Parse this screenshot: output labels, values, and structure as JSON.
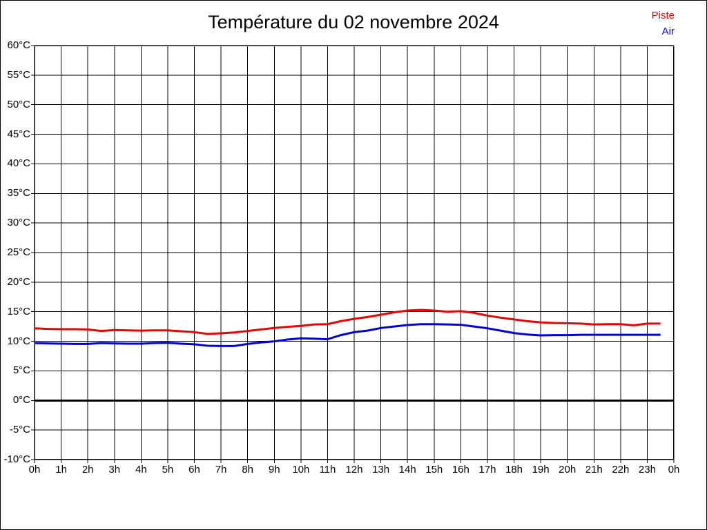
{
  "title": "Température du 02 novembre 2024",
  "legend": [
    {
      "label": "Piste",
      "color": "#ee0000"
    },
    {
      "label": "Air",
      "color": "#0000dd"
    }
  ],
  "colors": {
    "grid": "#000000",
    "zero_line": "#000000",
    "background": "#ffffff",
    "border": "#000000"
  },
  "chart_data": {
    "type": "line",
    "title": "Température du 02 novembre 2024",
    "xlabel": "",
    "ylabel": "",
    "xlim": [
      0,
      24
    ],
    "ylim": [
      -10,
      60
    ],
    "y_step": 5,
    "grid": true,
    "zero_line_width": 3,
    "legend_position": "top-right",
    "y_tick_labels": [
      "60°C",
      "55°C",
      "50°C",
      "45°C",
      "40°C",
      "35°C",
      "30°C",
      "25°C",
      "20°C",
      "15°C",
      "10°C",
      "5°C",
      "0°C",
      "-5°C",
      "-10°C"
    ],
    "y_tick_values": [
      60,
      55,
      50,
      45,
      40,
      35,
      30,
      25,
      20,
      15,
      10,
      5,
      0,
      -5,
      -10
    ],
    "x_tick_labels": [
      "0h",
      "1h",
      "2h",
      "3h",
      "4h",
      "5h",
      "6h",
      "7h",
      "8h",
      "9h",
      "10h",
      "11h",
      "12h",
      "13h",
      "14h",
      "15h",
      "16h",
      "17h",
      "18h",
      "19h",
      "20h",
      "21h",
      "22h",
      "23h",
      "0h"
    ],
    "x_tick_values": [
      0,
      1,
      2,
      3,
      4,
      5,
      6,
      7,
      8,
      9,
      10,
      11,
      12,
      13,
      14,
      15,
      16,
      17,
      18,
      19,
      20,
      21,
      22,
      23,
      24
    ],
    "x": [
      0,
      0.5,
      1,
      1.5,
      2,
      2.5,
      3,
      3.5,
      4,
      4.5,
      5,
      5.5,
      6,
      6.5,
      7,
      7.5,
      8,
      8.5,
      9,
      9.5,
      10,
      10.5,
      11,
      11.5,
      12,
      12.5,
      13,
      13.5,
      14,
      14.5,
      15,
      15.5,
      16,
      16.5,
      17,
      17.5,
      18,
      18.5,
      19,
      19.5,
      20,
      20.5,
      21,
      21.5,
      22,
      22.5,
      23,
      23.5
    ],
    "series": [
      {
        "name": "Piste",
        "color": "#ee0000",
        "line_width": 3,
        "values": [
          12.2,
          12.1,
          12.05,
          12.05,
          12.0,
          11.75,
          11.9,
          11.85,
          11.8,
          11.85,
          11.85,
          11.7,
          11.55,
          11.25,
          11.35,
          11.5,
          11.75,
          12.0,
          12.25,
          12.45,
          12.6,
          12.85,
          12.9,
          13.4,
          13.8,
          14.1,
          14.5,
          14.9,
          15.2,
          15.3,
          15.2,
          15.0,
          15.1,
          14.8,
          14.35,
          14.0,
          13.7,
          13.4,
          13.2,
          13.1,
          13.05,
          13.0,
          12.85,
          12.9,
          12.9,
          12.7,
          13.0,
          13.0
        ]
      },
      {
        "name": "Air",
        "color": "#0000dd",
        "line_width": 3,
        "values": [
          9.7,
          9.65,
          9.6,
          9.55,
          9.55,
          9.7,
          9.65,
          9.6,
          9.6,
          9.7,
          9.75,
          9.6,
          9.5,
          9.25,
          9.2,
          9.2,
          9.55,
          9.8,
          10.0,
          10.3,
          10.5,
          10.45,
          10.35,
          11.05,
          11.55,
          11.8,
          12.25,
          12.5,
          12.75,
          12.9,
          12.9,
          12.85,
          12.8,
          12.5,
          12.2,
          11.8,
          11.4,
          11.15,
          11.0,
          11.05,
          11.05,
          11.1,
          11.1,
          11.1,
          11.1,
          11.1,
          11.1,
          11.1
        ]
      }
    ]
  }
}
